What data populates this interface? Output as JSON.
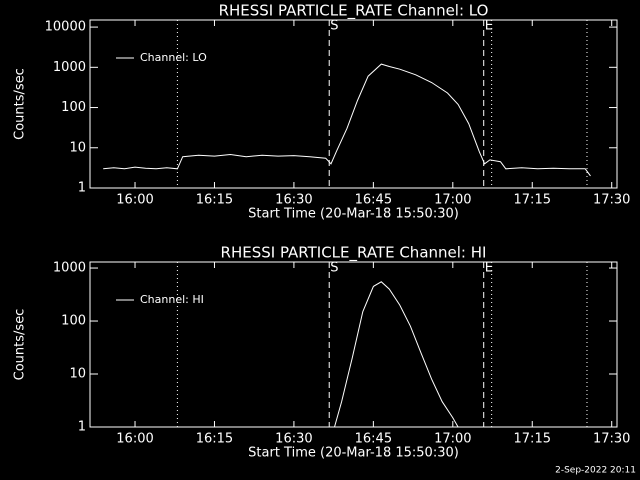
{
  "chart_data": [
    {
      "type": "line",
      "title": "RHESSI PARTICLE_RATE Channel: LO",
      "xlabel": "Start Time (20-Mar-18 15:50:30)",
      "ylabel": "Counts/sec",
      "log_y": true,
      "legend": "upper left",
      "xlim": [
        "15:51:30",
        "17:31"
      ],
      "ylim": [
        1,
        15000
      ],
      "xticks": [
        "16:00",
        "16:15",
        "16:30",
        "16:45",
        "17:00",
        "17:15",
        "17:30"
      ],
      "yticks": [
        1,
        10,
        100,
        1000,
        10000
      ],
      "markers": [
        {
          "x": "16:08",
          "style": "dotted"
        },
        {
          "x": "16:36:40",
          "style": "dashed",
          "label": "S"
        },
        {
          "x": "17:05:50",
          "style": "dashed",
          "label": "E"
        },
        {
          "x": "17:07:20",
          "style": "dotted"
        },
        {
          "x": "17:25:20",
          "style": "dotted"
        }
      ],
      "x": [
        "15:54",
        "15:56",
        "15:58",
        "16:00",
        "16:02",
        "16:04",
        "16:06",
        "16:08",
        "16:09",
        "16:12",
        "16:15",
        "16:18",
        "16:21",
        "16:24",
        "16:27",
        "16:30",
        "16:33",
        "16:36",
        "16:37",
        "16:38",
        "16:40",
        "16:42",
        "16:44",
        "16:46:30",
        "16:48",
        "16:50",
        "16:53",
        "16:56",
        "16:59",
        "17:01",
        "17:03",
        "17:05",
        "17:06",
        "17:07",
        "17:09",
        "17:10",
        "17:13",
        "17:16",
        "17:19",
        "17:22",
        "17:25",
        "17:26"
      ],
      "series": [
        {
          "name": "Channel: LO",
          "color": "#ffffff",
          "values": [
            3,
            3.2,
            3,
            3.3,
            3.1,
            3,
            3.2,
            3,
            6,
            6.5,
            6.2,
            6.8,
            6,
            6.5,
            6.2,
            6.4,
            6,
            5.5,
            4,
            8,
            30,
            150,
            600,
            1200,
            1050,
            900,
            650,
            420,
            230,
            120,
            40,
            8,
            4,
            5,
            4.5,
            3,
            3.2,
            3,
            3.1,
            3,
            3,
            2
          ]
        }
      ]
    },
    {
      "type": "line",
      "title": "RHESSI PARTICLE_RATE Channel: HI",
      "xlabel": "Start Time (20-Mar-18 15:50:30)",
      "ylabel": "Counts/sec",
      "log_y": true,
      "legend": "upper left",
      "xlim": [
        "15:51:30",
        "17:31"
      ],
      "ylim": [
        1,
        1300
      ],
      "xticks": [
        "16:00",
        "16:15",
        "16:30",
        "16:45",
        "17:00",
        "17:15",
        "17:30"
      ],
      "yticks": [
        1,
        10,
        100,
        1000
      ],
      "markers": [
        {
          "x": "16:08",
          "style": "dotted"
        },
        {
          "x": "16:36:40",
          "style": "dashed",
          "label": "S"
        },
        {
          "x": "17:05:50",
          "style": "dashed",
          "label": "E"
        },
        {
          "x": "17:07:20",
          "style": "dotted"
        },
        {
          "x": "17:25:20",
          "style": "dotted"
        }
      ],
      "x": [
        "16:37:40",
        "16:39",
        "16:41",
        "16:43",
        "16:45",
        "16:46:30",
        "16:48",
        "16:50",
        "16:52",
        "16:54",
        "16:56",
        "16:58",
        "17:00",
        "17:01"
      ],
      "series": [
        {
          "name": "Channel: HI",
          "color": "#ffffff",
          "values": [
            1,
            3,
            20,
            150,
            450,
            550,
            400,
            200,
            80,
            25,
            8,
            3,
            1.5,
            1
          ]
        }
      ]
    },
    {
      "type": "footer",
      "text": "2-Sep-2022 20:11"
    }
  ]
}
